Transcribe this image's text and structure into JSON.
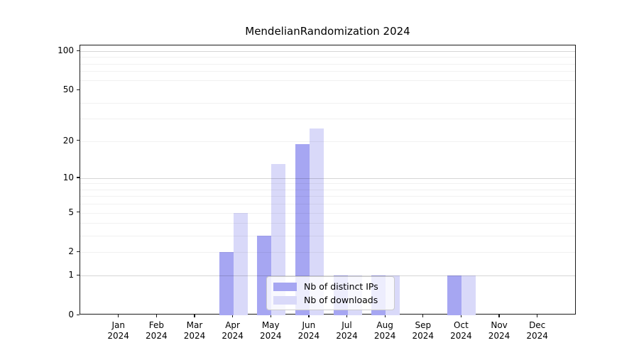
{
  "chart_data": {
    "type": "bar",
    "title": "MendelianRandomization 2024",
    "categories": [
      "Jan 2024",
      "Feb 2024",
      "Mar 2024",
      "Apr 2024",
      "May 2024",
      "Jun 2024",
      "Jul 2024",
      "Aug 2024",
      "Sep 2024",
      "Oct 2024",
      "Nov 2024",
      "Dec 2024"
    ],
    "series": [
      {
        "name": "Nb of distinct IPs",
        "color": "#a6a6f2",
        "values": [
          0,
          0,
          0,
          2,
          3,
          19,
          1,
          1,
          0,
          1,
          0,
          0
        ]
      },
      {
        "name": "Nb of downloads",
        "color": "#d9d9f9",
        "values": [
          0,
          0,
          0,
          5,
          13,
          25,
          1,
          1,
          0,
          1,
          0,
          0
        ]
      }
    ],
    "xlabel": "",
    "ylabel": "",
    "yscale": "log1p",
    "ylim": [
      0,
      110
    ],
    "yticks": [
      0,
      1,
      2,
      5,
      10,
      20,
      50,
      100
    ],
    "major_gridlines": [
      1,
      10,
      100
    ],
    "minor_gridlines": [
      2,
      3,
      4,
      5,
      6,
      7,
      8,
      9,
      20,
      30,
      40,
      60,
      70,
      80,
      90
    ],
    "grid": "on",
    "legend_position": "lower center (inside plot)"
  }
}
